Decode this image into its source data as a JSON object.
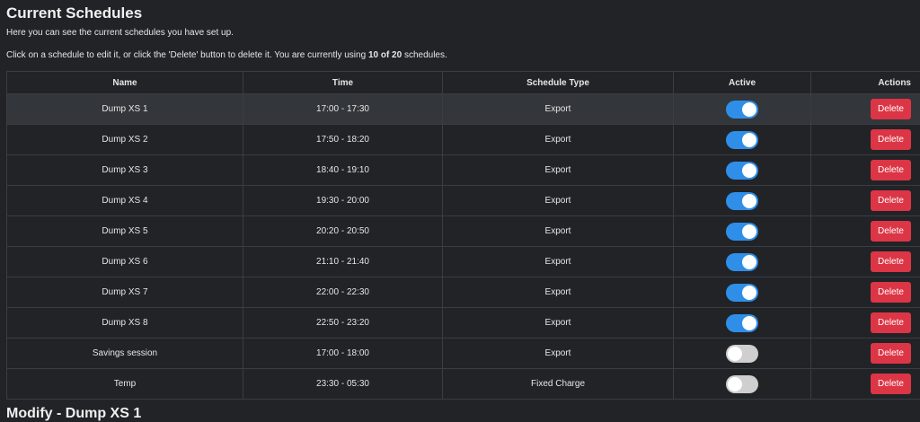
{
  "title": "Current Schedules",
  "intro": "Here you can see the current schedules you have set up.",
  "instr_pre": "Click on a schedule to edit it, or click the 'Delete' button to delete it. You are currently using ",
  "instr_bold": "10 of 20",
  "instr_post": " schedules.",
  "columns": [
    "Name",
    "Time",
    "Schedule Type",
    "Active",
    "Actions"
  ],
  "delete_label": "Delete",
  "rows": [
    {
      "name": "Dump XS 1",
      "time": "17:00 - 17:30",
      "type": "Export",
      "active": true
    },
    {
      "name": "Dump XS 2",
      "time": "17:50 - 18:20",
      "type": "Export",
      "active": true
    },
    {
      "name": "Dump XS 3",
      "time": "18:40 - 19:10",
      "type": "Export",
      "active": true
    },
    {
      "name": "Dump XS 4",
      "time": "19:30 - 20:00",
      "type": "Export",
      "active": true
    },
    {
      "name": "Dump XS 5",
      "time": "20:20 - 20:50",
      "type": "Export",
      "active": true
    },
    {
      "name": "Dump XS 6",
      "time": "21:10 - 21:40",
      "type": "Export",
      "active": true
    },
    {
      "name": "Dump XS 7",
      "time": "22:00 - 22:30",
      "type": "Export",
      "active": true
    },
    {
      "name": "Dump XS 8",
      "time": "22:50 - 23:20",
      "type": "Export",
      "active": true
    },
    {
      "name": "Savings session",
      "time": "17:00 - 18:00",
      "type": "Export",
      "active": false
    },
    {
      "name": "Temp",
      "time": "23:30 - 05:30",
      "type": "Fixed Charge",
      "active": false
    }
  ],
  "modify_title": "Modify - Dump XS 1",
  "colors": {
    "toggle_on": "#2f8fe8",
    "delete": "#dc3545",
    "background": "#212327"
  }
}
